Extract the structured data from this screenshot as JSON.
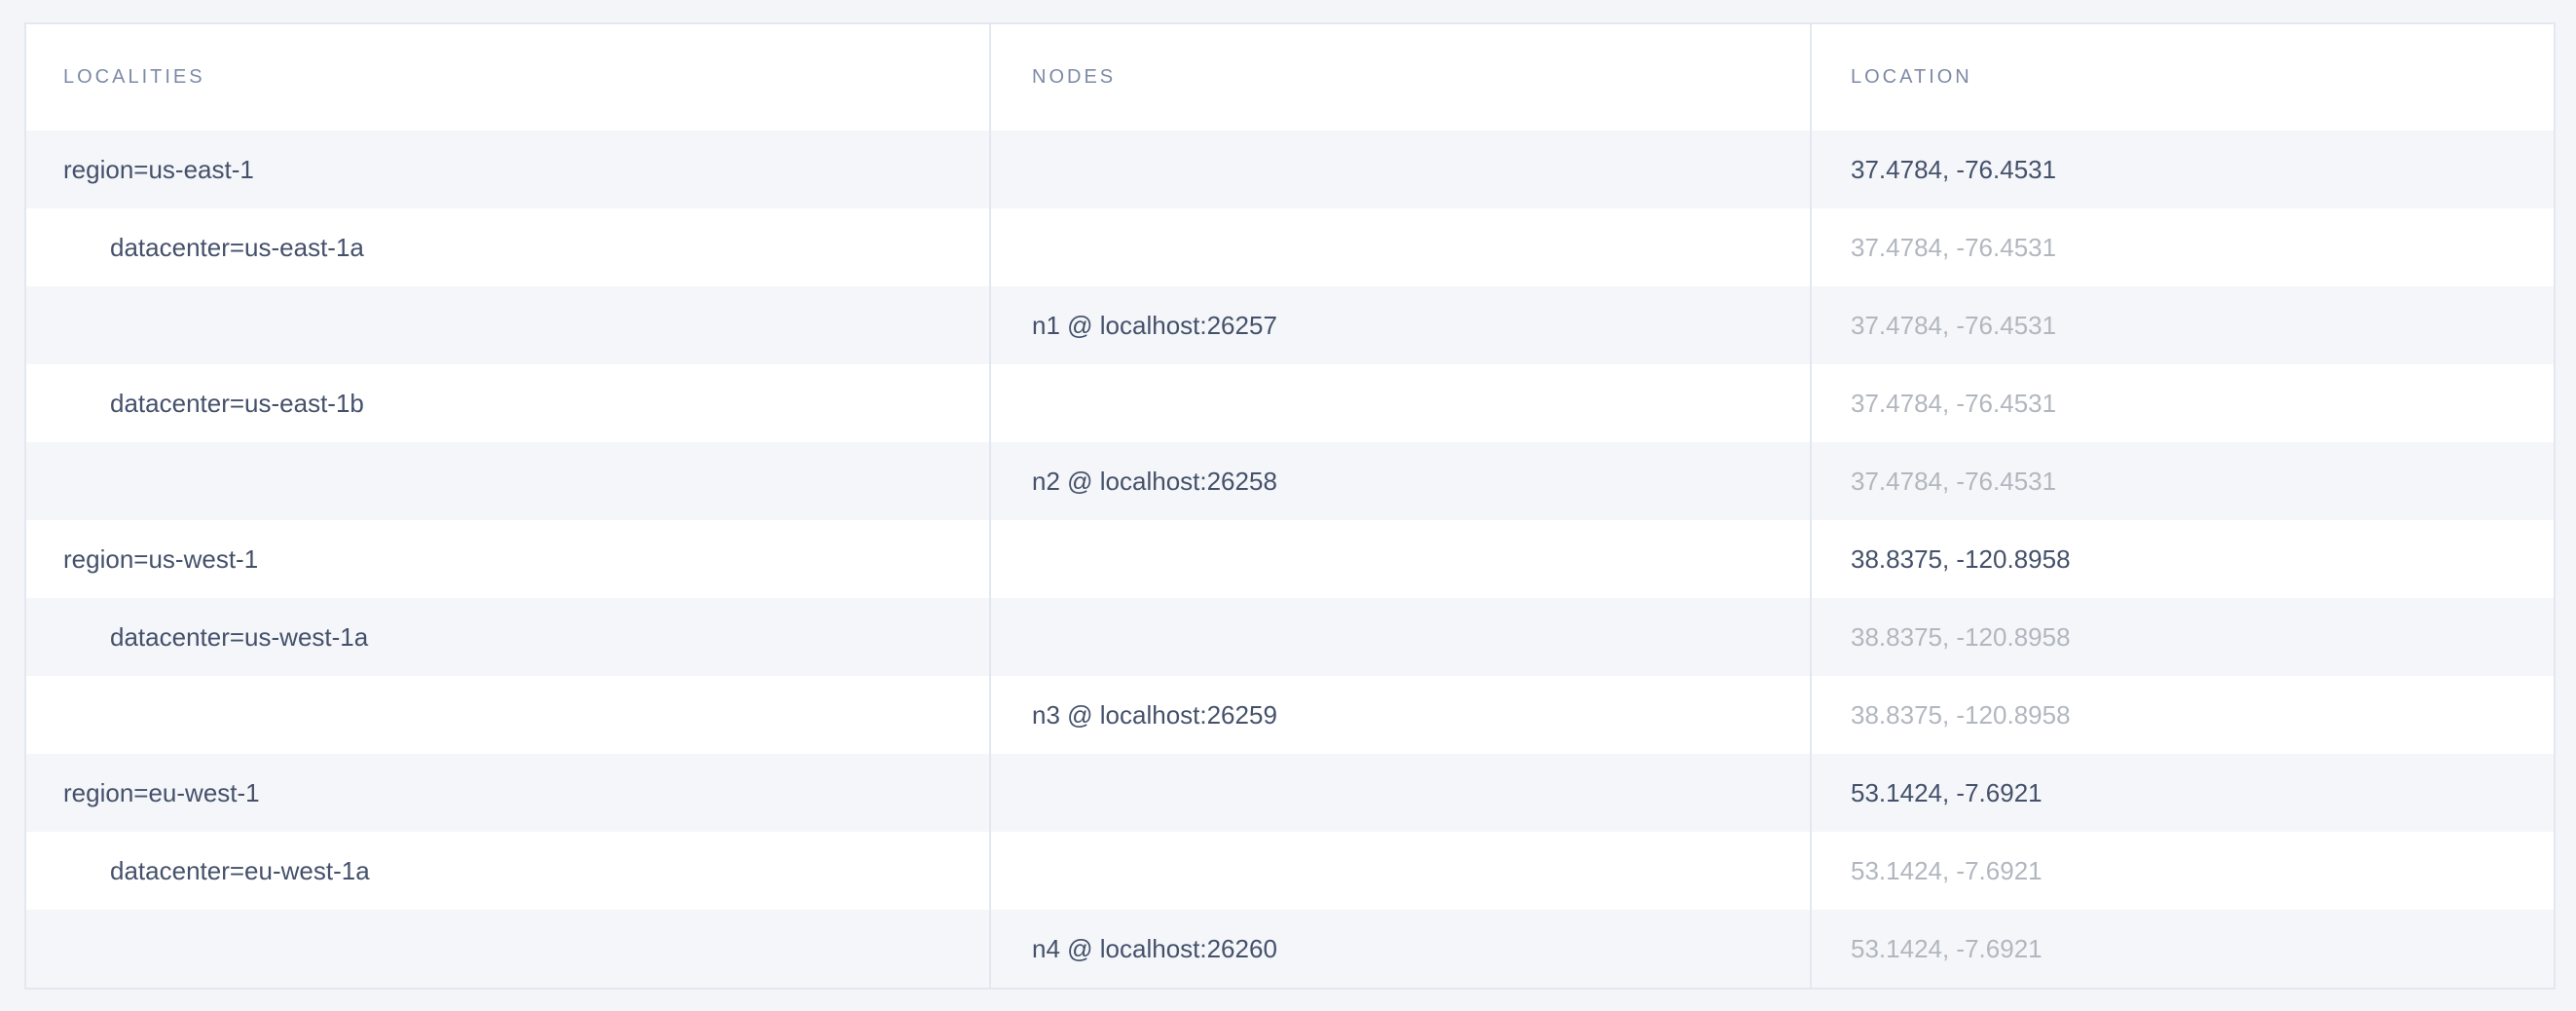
{
  "colors": {
    "page_background": "#f4f5f9",
    "row_alt_background": "#f4f6f9",
    "row_background": "#ffffff",
    "border": "#e2e7f0",
    "header_text": "#7e8aa5",
    "text_primary": "#45516b",
    "text_muted": "#b2b7bf"
  },
  "table": {
    "columns": [
      {
        "label": "LOCALITIES"
      },
      {
        "label": "NODES"
      },
      {
        "label": "LOCATION"
      }
    ],
    "rows": [
      {
        "locality": "region=us-east-1",
        "indent": false,
        "node": "",
        "location": "37.4784, -76.4531",
        "muted": false
      },
      {
        "locality": "datacenter=us-east-1a",
        "indent": true,
        "node": "",
        "location": "37.4784, -76.4531",
        "muted": true
      },
      {
        "locality": "",
        "indent": false,
        "node": "n1 @ localhost:26257",
        "location": "37.4784, -76.4531",
        "muted": true
      },
      {
        "locality": "datacenter=us-east-1b",
        "indent": true,
        "node": "",
        "location": "37.4784, -76.4531",
        "muted": true
      },
      {
        "locality": "",
        "indent": false,
        "node": "n2 @ localhost:26258",
        "location": "37.4784, -76.4531",
        "muted": true
      },
      {
        "locality": "region=us-west-1",
        "indent": false,
        "node": "",
        "location": "38.8375, -120.8958",
        "muted": false
      },
      {
        "locality": "datacenter=us-west-1a",
        "indent": true,
        "node": "",
        "location": "38.8375, -120.8958",
        "muted": true
      },
      {
        "locality": "",
        "indent": false,
        "node": "n3 @ localhost:26259",
        "location": "38.8375, -120.8958",
        "muted": true
      },
      {
        "locality": "region=eu-west-1",
        "indent": false,
        "node": "",
        "location": "53.1424, -7.6921",
        "muted": false
      },
      {
        "locality": "datacenter=eu-west-1a",
        "indent": true,
        "node": "",
        "location": "53.1424, -7.6921",
        "muted": true
      },
      {
        "locality": "",
        "indent": false,
        "node": "n4 @ localhost:26260",
        "location": "53.1424, -7.6921",
        "muted": true
      }
    ]
  }
}
